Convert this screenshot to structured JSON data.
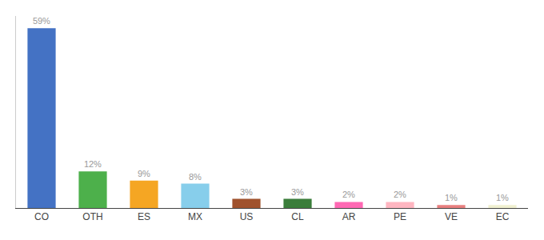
{
  "chart_data": {
    "type": "bar",
    "categories": [
      "CO",
      "OTH",
      "ES",
      "MX",
      "US",
      "CL",
      "AR",
      "PE",
      "VE",
      "EC"
    ],
    "values": [
      59,
      12,
      9,
      8,
      3,
      3,
      2,
      2,
      1,
      1
    ],
    "value_labels": [
      "59%",
      "12%",
      "9%",
      "8%",
      "3%",
      "3%",
      "2%",
      "2%",
      "1%",
      "1%"
    ],
    "colors": [
      "#4472c4",
      "#4db04b",
      "#f5a623",
      "#87ceeb",
      "#a0522d",
      "#3a7d3a",
      "#ff69b4",
      "#ffb6c1",
      "#e88080",
      "#f0f0d0"
    ],
    "ylim": [
      0,
      63
    ],
    "yticks": [],
    "grid": false,
    "data_labels": true,
    "tick_labels": "x"
  }
}
